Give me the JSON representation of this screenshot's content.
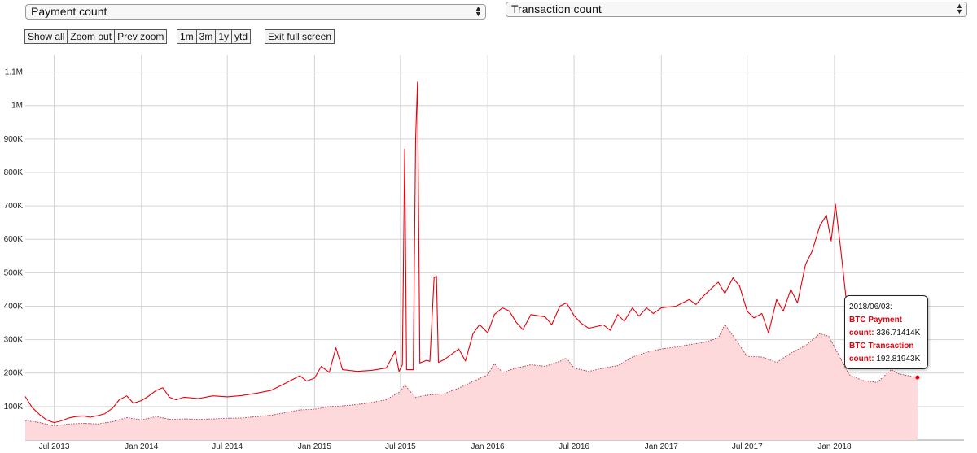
{
  "controls": {
    "left_select": "Payment count",
    "right_select": "Transaction count",
    "zoom_buttons": [
      "Show all",
      "Zoom out",
      "Prev zoom"
    ],
    "range_buttons": [
      "1m",
      "3m",
      "1y",
      "ytd"
    ],
    "fullscreen_button": "Exit full screen"
  },
  "tooltip": {
    "date": "2018/06/03:",
    "payment_label": "BTC Payment",
    "payment_value_label": "count:",
    "payment_value": "336.71414K",
    "transaction_label": "BTC Transaction",
    "transaction_value_label": "count:",
    "transaction_value": "192.81943K"
  },
  "colors": {
    "payment_line": "#e8000b",
    "transaction_fill": "#fdd9db",
    "transaction_line": "#b0334a",
    "grid": "#d3d3d3"
  },
  "chart_data": {
    "type": "line",
    "x_axis": {
      "type": "date",
      "range": [
        "2013-05-01",
        "2018-10-01"
      ],
      "tick_labels": [
        "Jul 2013",
        "Jan 2014",
        "Jul 2014",
        "Jan 2015",
        "Jul 2015",
        "Jan 2016",
        "Jul 2016",
        "Jan 2017",
        "Jul 2017",
        "Jan 2018"
      ],
      "tick_dates": [
        "2013-07-01",
        "2014-01-01",
        "2014-07-01",
        "2015-01-01",
        "2015-07-01",
        "2016-01-01",
        "2016-07-01",
        "2017-01-01",
        "2017-07-01",
        "2018-01-01"
      ]
    },
    "y_axis": {
      "range": [
        0,
        1150000
      ],
      "tick_values": [
        100000,
        200000,
        300000,
        400000,
        500000,
        600000,
        700000,
        800000,
        900000,
        1000000,
        1100000
      ],
      "tick_labels": [
        "100K",
        "200K",
        "300K",
        "400K",
        "500K",
        "600K",
        "700K",
        "800K",
        "900K",
        "1M",
        "1.1M"
      ]
    },
    "grid": true,
    "series": [
      {
        "name": "BTC Payment count",
        "style": "line",
        "points": [
          [
            "2013-05-01",
            130000
          ],
          [
            "2013-05-15",
            98000
          ],
          [
            "2013-06-01",
            75000
          ],
          [
            "2013-06-15",
            60000
          ],
          [
            "2013-07-01",
            52000
          ],
          [
            "2013-07-15",
            57000
          ],
          [
            "2013-08-01",
            66000
          ],
          [
            "2013-08-15",
            70000
          ],
          [
            "2013-09-01",
            72000
          ],
          [
            "2013-09-15",
            68000
          ],
          [
            "2013-10-01",
            73000
          ],
          [
            "2013-10-15",
            78000
          ],
          [
            "2013-11-01",
            95000
          ],
          [
            "2013-11-15",
            120000
          ],
          [
            "2013-12-01",
            132000
          ],
          [
            "2013-12-15",
            110000
          ],
          [
            "2014-01-01",
            118000
          ],
          [
            "2014-01-15",
            130000
          ],
          [
            "2014-02-01",
            148000
          ],
          [
            "2014-02-15",
            156000
          ],
          [
            "2014-03-01",
            128000
          ],
          [
            "2014-03-15",
            120000
          ],
          [
            "2014-04-01",
            128000
          ],
          [
            "2014-05-01",
            124000
          ],
          [
            "2014-06-01",
            132000
          ],
          [
            "2014-07-01",
            129000
          ],
          [
            "2014-08-01",
            133000
          ],
          [
            "2014-09-01",
            140000
          ],
          [
            "2014-10-01",
            148000
          ],
          [
            "2014-11-01",
            170000
          ],
          [
            "2014-12-01",
            192000
          ],
          [
            "2014-12-15",
            176000
          ],
          [
            "2015-01-01",
            185000
          ],
          [
            "2015-01-15",
            220000
          ],
          [
            "2015-02-01",
            202000
          ],
          [
            "2015-02-15",
            276000
          ],
          [
            "2015-03-01",
            210000
          ],
          [
            "2015-04-01",
            205000
          ],
          [
            "2015-05-01",
            208000
          ],
          [
            "2015-06-01",
            215000
          ],
          [
            "2015-06-20",
            265000
          ],
          [
            "2015-06-28",
            205000
          ],
          [
            "2015-07-05",
            225000
          ],
          [
            "2015-07-10",
            870000
          ],
          [
            "2015-07-14",
            210000
          ],
          [
            "2015-07-28",
            210000
          ],
          [
            "2015-08-02",
            900000
          ],
          [
            "2015-08-06",
            1070000
          ],
          [
            "2015-08-11",
            230000
          ],
          [
            "2015-08-25",
            238000
          ],
          [
            "2015-09-01",
            235000
          ],
          [
            "2015-09-10",
            485000
          ],
          [
            "2015-09-15",
            490000
          ],
          [
            "2015-09-19",
            232000
          ],
          [
            "2015-10-01",
            240000
          ],
          [
            "2015-11-01",
            272000
          ],
          [
            "2015-11-15",
            236000
          ],
          [
            "2015-12-01",
            318000
          ],
          [
            "2015-12-15",
            345000
          ],
          [
            "2016-01-01",
            320000
          ],
          [
            "2016-01-15",
            375000
          ],
          [
            "2016-02-01",
            395000
          ],
          [
            "2016-02-15",
            386000
          ],
          [
            "2016-03-01",
            352000
          ],
          [
            "2016-03-15",
            330000
          ],
          [
            "2016-04-01",
            375000
          ],
          [
            "2016-05-01",
            368000
          ],
          [
            "2016-05-15",
            345000
          ],
          [
            "2016-06-01",
            400000
          ],
          [
            "2016-06-15",
            410000
          ],
          [
            "2016-07-01",
            372000
          ],
          [
            "2016-07-15",
            350000
          ],
          [
            "2016-08-01",
            334000
          ],
          [
            "2016-09-01",
            344000
          ],
          [
            "2016-09-15",
            328000
          ],
          [
            "2016-10-01",
            375000
          ],
          [
            "2016-10-15",
            355000
          ],
          [
            "2016-11-01",
            395000
          ],
          [
            "2016-11-15",
            370000
          ],
          [
            "2016-12-01",
            395000
          ],
          [
            "2016-12-15",
            378000
          ],
          [
            "2017-01-01",
            395000
          ],
          [
            "2017-02-01",
            400000
          ],
          [
            "2017-03-01",
            420000
          ],
          [
            "2017-03-15",
            405000
          ],
          [
            "2017-04-01",
            432000
          ],
          [
            "2017-05-01",
            472000
          ],
          [
            "2017-05-15",
            438000
          ],
          [
            "2017-06-01",
            485000
          ],
          [
            "2017-06-15",
            460000
          ],
          [
            "2017-07-01",
            385000
          ],
          [
            "2017-07-15",
            365000
          ],
          [
            "2017-08-01",
            378000
          ],
          [
            "2017-08-15",
            320000
          ],
          [
            "2017-09-01",
            420000
          ],
          [
            "2017-09-15",
            385000
          ],
          [
            "2017-10-01",
            450000
          ],
          [
            "2017-10-15",
            410000
          ],
          [
            "2017-11-01",
            525000
          ],
          [
            "2017-11-15",
            565000
          ],
          [
            "2017-12-01",
            640000
          ],
          [
            "2017-12-15",
            672000
          ],
          [
            "2017-12-25",
            595000
          ],
          [
            "2018-01-03",
            705000
          ],
          [
            "2018-01-15",
            560000
          ],
          [
            "2018-02-01",
            338000
          ],
          [
            "2018-02-15",
            362000
          ],
          [
            "2018-03-01",
            345000
          ],
          [
            "2018-04-01",
            300000
          ],
          [
            "2018-04-15",
            298000
          ],
          [
            "2018-05-01",
            372000
          ],
          [
            "2018-05-15",
            355000
          ],
          [
            "2018-06-03",
            336714
          ],
          [
            "2018-06-15",
            338000
          ],
          [
            "2018-06-25",
            322000
          ]
        ]
      },
      {
        "name": "BTC Transaction count",
        "style": "area",
        "points": [
          [
            "2013-05-01",
            58000
          ],
          [
            "2013-06-01",
            52000
          ],
          [
            "2013-07-01",
            42000
          ],
          [
            "2013-08-01",
            48000
          ],
          [
            "2013-09-01",
            50000
          ],
          [
            "2013-10-01",
            48000
          ],
          [
            "2013-11-01",
            55000
          ],
          [
            "2013-12-01",
            67000
          ],
          [
            "2014-01-01",
            60000
          ],
          [
            "2014-02-01",
            70000
          ],
          [
            "2014-03-01",
            62000
          ],
          [
            "2014-04-01",
            63000
          ],
          [
            "2014-05-01",
            62000
          ],
          [
            "2014-06-01",
            63000
          ],
          [
            "2014-07-01",
            65000
          ],
          [
            "2014-08-01",
            66000
          ],
          [
            "2014-09-01",
            70000
          ],
          [
            "2014-10-01",
            74000
          ],
          [
            "2014-11-01",
            82000
          ],
          [
            "2014-12-01",
            90000
          ],
          [
            "2015-01-01",
            92000
          ],
          [
            "2015-02-01",
            100000
          ],
          [
            "2015-03-01",
            102000
          ],
          [
            "2015-04-01",
            106000
          ],
          [
            "2015-05-01",
            112000
          ],
          [
            "2015-06-01",
            120000
          ],
          [
            "2015-07-01",
            145000
          ],
          [
            "2015-07-10",
            165000
          ],
          [
            "2015-08-01",
            128000
          ],
          [
            "2015-09-01",
            135000
          ],
          [
            "2015-10-01",
            138000
          ],
          [
            "2015-11-01",
            155000
          ],
          [
            "2015-12-01",
            175000
          ],
          [
            "2016-01-01",
            195000
          ],
          [
            "2016-01-15",
            228000
          ],
          [
            "2016-02-01",
            202000
          ],
          [
            "2016-03-01",
            215000
          ],
          [
            "2016-04-01",
            225000
          ],
          [
            "2016-05-01",
            220000
          ],
          [
            "2016-06-01",
            235000
          ],
          [
            "2016-06-15",
            245000
          ],
          [
            "2016-07-01",
            215000
          ],
          [
            "2016-08-01",
            205000
          ],
          [
            "2016-09-01",
            215000
          ],
          [
            "2016-10-01",
            222000
          ],
          [
            "2016-11-01",
            248000
          ],
          [
            "2016-12-01",
            262000
          ],
          [
            "2017-01-01",
            272000
          ],
          [
            "2017-02-01",
            278000
          ],
          [
            "2017-03-01",
            285000
          ],
          [
            "2017-04-01",
            292000
          ],
          [
            "2017-05-01",
            305000
          ],
          [
            "2017-05-15",
            345000
          ],
          [
            "2017-06-01",
            312000
          ],
          [
            "2017-07-01",
            250000
          ],
          [
            "2017-08-01",
            248000
          ],
          [
            "2017-09-01",
            232000
          ],
          [
            "2017-10-01",
            260000
          ],
          [
            "2017-11-01",
            282000
          ],
          [
            "2017-12-01",
            318000
          ],
          [
            "2017-12-20",
            310000
          ],
          [
            "2018-01-01",
            278000
          ],
          [
            "2018-02-01",
            195000
          ],
          [
            "2018-03-01",
            178000
          ],
          [
            "2018-04-01",
            172000
          ],
          [
            "2018-05-01",
            210000
          ],
          [
            "2018-05-15",
            198000
          ],
          [
            "2018-06-03",
            192819
          ],
          [
            "2018-06-25",
            187000
          ]
        ]
      }
    ]
  }
}
